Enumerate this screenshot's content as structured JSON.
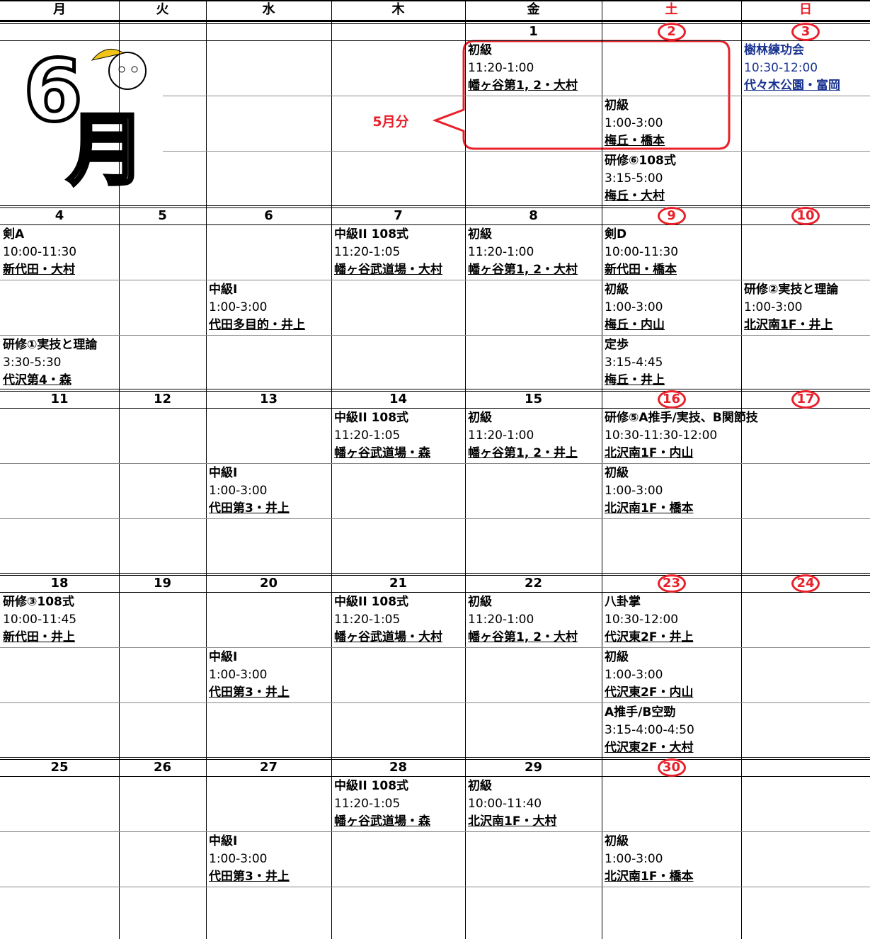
{
  "weekdays": [
    "月",
    "火",
    "水",
    "木",
    "金",
    "土",
    "日"
  ],
  "logo": {
    "number": "6",
    "month": "月"
  },
  "note": "5月分",
  "weeks": [
    {
      "days": [
        {
          "date": null,
          "slots": [
            null,
            null,
            null
          ]
        },
        {
          "date": null,
          "slots": [
            null,
            null,
            null
          ]
        },
        {
          "date": null,
          "slots": [
            null,
            null,
            null
          ]
        },
        {
          "date": null,
          "slots": [
            null,
            null,
            null
          ]
        },
        {
          "date": "1",
          "slots": [
            [
              "初級",
              "11:20-1:00",
              "幡ヶ谷第1, 2・大村"
            ],
            null,
            null
          ]
        },
        {
          "date": "2",
          "slots": [
            null,
            [
              "初級",
              "1:00-3:00",
              "梅丘・橋本"
            ],
            [
              "研修⑥108式",
              "3:15-5:00",
              "梅丘・大村"
            ]
          ]
        },
        {
          "date": "3",
          "color": "#1a3390",
          "slots": [
            [
              "樹林練功会",
              "10:30-12:00",
              "代々木公園・富岡"
            ],
            null,
            null
          ]
        }
      ]
    },
    {
      "days": [
        {
          "date": "4",
          "slots": [
            [
              "剣A",
              "10:00-11:30",
              "新代田・大村"
            ],
            null,
            [
              "研修①実技と理論",
              "3:30-5:30",
              "代沢第4・森"
            ]
          ]
        },
        {
          "date": "5",
          "slots": [
            null,
            null,
            null
          ]
        },
        {
          "date": "6",
          "slots": [
            null,
            [
              "中級I",
              "1:00-3:00",
              "代田多目的・井上"
            ],
            null
          ]
        },
        {
          "date": "7",
          "slots": [
            [
              "中級II 108式",
              "11:20-1:05",
              "幡ヶ谷武道場・大村"
            ],
            null,
            null
          ]
        },
        {
          "date": "8",
          "slots": [
            [
              "初級",
              "11:20-1:00",
              "幡ヶ谷第1, 2・大村"
            ],
            null,
            null
          ]
        },
        {
          "date": "9",
          "slots": [
            [
              "剣D",
              "10:00-11:30",
              "新代田・橋本"
            ],
            [
              "初級",
              "1:00-3:00",
              "梅丘・内山"
            ],
            [
              "定歩",
              "3:15-4:45",
              "梅丘・井上"
            ]
          ]
        },
        {
          "date": "10",
          "slots": [
            null,
            [
              "研修②実技と理論",
              "1:00-3:00",
              "北沢南1F・井上"
            ],
            null
          ]
        }
      ]
    },
    {
      "days": [
        {
          "date": "11",
          "slots": [
            null,
            null,
            null
          ]
        },
        {
          "date": "12",
          "slots": [
            null,
            null,
            null
          ]
        },
        {
          "date": "13",
          "slots": [
            null,
            [
              "中級I",
              "1:00-3:00",
              "代田第3・井上"
            ],
            null
          ]
        },
        {
          "date": "14",
          "slots": [
            [
              "中級II 108式",
              "11:20-1:05",
              "幡ヶ谷武道場・森"
            ],
            null,
            null
          ]
        },
        {
          "date": "15",
          "slots": [
            [
              "初級",
              "11:20-1:00",
              "幡ヶ谷第1, 2・井上"
            ],
            null,
            null
          ]
        },
        {
          "date": "16",
          "slots": [
            [
              "研修⑤A推手/実技、B関節技",
              "10:30-11:30-12:00",
              "北沢南1F・内山"
            ],
            [
              "初級",
              "1:00-3:00",
              "北沢南1F・橋本"
            ],
            null
          ]
        },
        {
          "date": "17",
          "slots": [
            null,
            null,
            null
          ]
        }
      ]
    },
    {
      "days": [
        {
          "date": "18",
          "slots": [
            [
              "研修③108式",
              "10:00-11:45",
              "新代田・井上"
            ],
            null,
            null
          ]
        },
        {
          "date": "19",
          "slots": [
            null,
            null,
            null
          ]
        },
        {
          "date": "20",
          "slots": [
            null,
            [
              "中級I",
              "1:00-3:00",
              "代田第3・井上"
            ],
            null
          ]
        },
        {
          "date": "21",
          "slots": [
            [
              "中級II 108式",
              "11:20-1:05",
              "幡ヶ谷武道場・大村"
            ],
            null,
            null
          ]
        },
        {
          "date": "22",
          "slots": [
            [
              "初級",
              "11:20-1:00",
              "幡ヶ谷第1, 2・大村"
            ],
            null,
            null
          ]
        },
        {
          "date": "23",
          "slots": [
            [
              "八卦掌",
              "10:30-12:00",
              "代沢東2F・井上"
            ],
            [
              "初級",
              "1:00-3:00",
              "代沢東2F・内山"
            ],
            [
              "A推手/B空勁",
              "3:15-4:00-4:50",
              "代沢東2F・大村"
            ]
          ]
        },
        {
          "date": "24",
          "slots": [
            null,
            null,
            null
          ]
        }
      ]
    },
    {
      "days": [
        {
          "date": "25",
          "slots": [
            null,
            null,
            null
          ]
        },
        {
          "date": "26",
          "slots": [
            null,
            null,
            null
          ]
        },
        {
          "date": "27",
          "slots": [
            null,
            [
              "中級I",
              "1:00-3:00",
              "代田第3・井上"
            ],
            null
          ]
        },
        {
          "date": "28",
          "slots": [
            [
              "中級II 108式",
              "11:20-1:05",
              "幡ヶ谷武道場・森"
            ],
            null,
            null
          ]
        },
        {
          "date": "29",
          "slots": [
            [
              "初級",
              "10:00-11:40",
              "北沢南1F・大村"
            ],
            null,
            null
          ]
        },
        {
          "date": "30",
          "slots": [
            null,
            [
              "初級",
              "1:00-3:00",
              "北沢南1F・橋本"
            ],
            null
          ]
        },
        {
          "date": null,
          "slots": [
            null,
            null,
            null
          ]
        }
      ]
    }
  ]
}
